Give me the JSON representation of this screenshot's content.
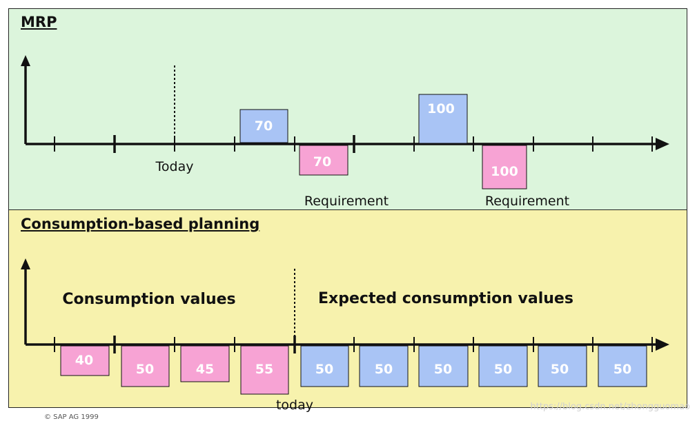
{
  "mrp": {
    "title": "MRP",
    "today_label": "Today",
    "receipts": [
      {
        "value": "70",
        "color": "#a9c4f5"
      },
      {
        "value": "100",
        "color": "#a9c4f5"
      }
    ],
    "requirements": [
      {
        "value": "70",
        "color": "#f7a3d4",
        "label": "Requirement"
      },
      {
        "value": "100",
        "color": "#f7a3d4",
        "label": "Requirement"
      }
    ]
  },
  "cbp": {
    "title": "Consumption-based planning",
    "left_heading": "Consumption values",
    "right_heading": "Expected consumption values",
    "today_label": "today",
    "consumption": [
      {
        "value": "40",
        "color": "#f7a3d4"
      },
      {
        "value": "50",
        "color": "#f7a3d4"
      },
      {
        "value": "45",
        "color": "#f7a3d4"
      },
      {
        "value": "55",
        "color": "#f7a3d4"
      }
    ],
    "expected": [
      {
        "value": "50",
        "color": "#a9c4f5"
      },
      {
        "value": "50",
        "color": "#a9c4f5"
      },
      {
        "value": "50",
        "color": "#a9c4f5"
      },
      {
        "value": "50",
        "color": "#a9c4f5"
      },
      {
        "value": "50",
        "color": "#a9c4f5"
      },
      {
        "value": "50",
        "color": "#a9c4f5"
      }
    ]
  },
  "footer": "© SAP AG 1999",
  "watermark": "https://blog.csdn.net/zhongguomao"
}
